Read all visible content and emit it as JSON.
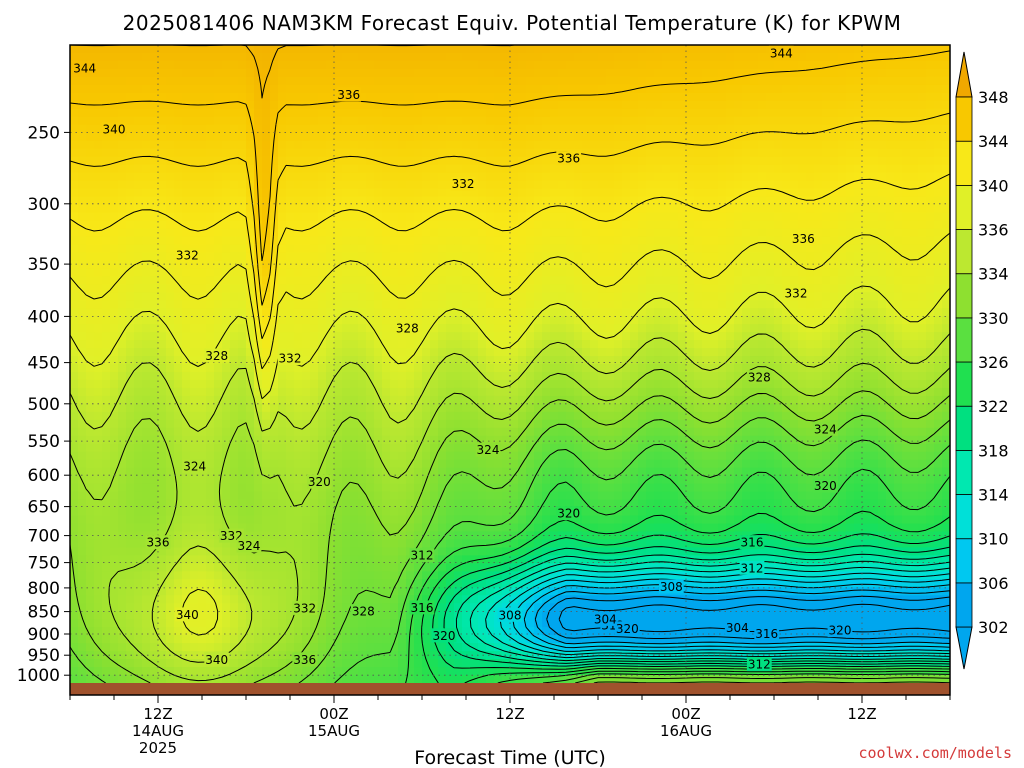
{
  "title": "2025081406 NAM3KM Forecast Equiv. Potential Temperature (K) for KPWM",
  "credit": "coolwx.com/models",
  "chart_data": {
    "type": "heatmap",
    "title": "2025081406 NAM3KM Forecast Equiv. Potential Temperature (K) for KPWM",
    "xlabel": "Forecast Time (UTC)",
    "ylabel": "",
    "y_scale": "log",
    "y_axis_inverted": true,
    "ylim": [
      1020,
      200
    ],
    "y_ticks": [
      250,
      300,
      350,
      400,
      450,
      500,
      550,
      600,
      650,
      700,
      750,
      800,
      850,
      900,
      950,
      1000
    ],
    "x_hours": [
      0,
      60
    ],
    "x_ticks": [
      {
        "hour": 6,
        "lines": [
          "12Z",
          "14AUG",
          "2025"
        ]
      },
      {
        "hour": 18,
        "lines": [
          "00Z",
          "15AUG"
        ]
      },
      {
        "hour": 30,
        "lines": [
          "12Z"
        ]
      },
      {
        "hour": 42,
        "lines": [
          "00Z",
          "16AUG"
        ]
      },
      {
        "hour": 54,
        "lines": [
          "12Z"
        ]
      }
    ],
    "grid": true,
    "colorbar": {
      "levels": [
        302,
        306,
        310,
        314,
        318,
        322,
        326,
        330,
        334,
        336,
        340,
        344,
        348
      ],
      "colors": [
        "#00a6ee",
        "#00c8f0",
        "#00e0d8",
        "#00e8b0",
        "#00e080",
        "#20e050",
        "#5ae040",
        "#8ee030",
        "#bce830",
        "#e0f028",
        "#f8e818",
        "#f8c800",
        "#f0a800"
      ],
      "extend": "both"
    },
    "contour_interval": 2,
    "contour_labels": [
      {
        "value": 344,
        "hour": 1.0,
        "p": 212
      },
      {
        "value": 344,
        "hour": 48.5,
        "p": 204
      },
      {
        "value": 340,
        "hour": 3.0,
        "p": 248
      },
      {
        "value": 336,
        "hour": 19.0,
        "p": 227
      },
      {
        "value": 336,
        "hour": 34.0,
        "p": 267
      },
      {
        "value": 336,
        "hour": 50.0,
        "p": 328
      },
      {
        "value": 332,
        "hour": 26.8,
        "p": 285
      },
      {
        "value": 332,
        "hour": 8.0,
        "p": 342
      },
      {
        "value": 332,
        "hour": 49.5,
        "p": 377
      },
      {
        "value": 332,
        "hour": 15.0,
        "p": 445
      },
      {
        "value": 328,
        "hour": 10.0,
        "p": 442
      },
      {
        "value": 328,
        "hour": 23.0,
        "p": 412
      },
      {
        "value": 328,
        "hour": 47.0,
        "p": 467
      },
      {
        "value": 324,
        "hour": 8.5,
        "p": 586
      },
      {
        "value": 324,
        "hour": 28.5,
        "p": 562
      },
      {
        "value": 324,
        "hour": 51.5,
        "p": 533
      },
      {
        "value": 320,
        "hour": 17.0,
        "p": 610
      },
      {
        "value": 320,
        "hour": 34.0,
        "p": 661
      },
      {
        "value": 320,
        "hour": 51.5,
        "p": 616
      },
      {
        "value": 316,
        "hour": 46.5,
        "p": 712
      },
      {
        "value": 316,
        "hour": 24.0,
        "p": 841
      },
      {
        "value": 316,
        "hour": 47.5,
        "p": 899
      },
      {
        "value": 312,
        "hour": 24.0,
        "p": 736
      },
      {
        "value": 312,
        "hour": 46.5,
        "p": 760
      },
      {
        "value": 312,
        "hour": 37.0,
        "p": 880
      },
      {
        "value": 312,
        "hour": 47.0,
        "p": 972
      },
      {
        "value": 308,
        "hour": 41.0,
        "p": 797
      },
      {
        "value": 308,
        "hour": 30.0,
        "p": 857
      },
      {
        "value": 304,
        "hour": 36.5,
        "p": 866
      },
      {
        "value": 304,
        "hour": 45.5,
        "p": 885
      },
      {
        "value": 320,
        "hour": 38.0,
        "p": 887
      },
      {
        "value": 320,
        "hour": 25.5,
        "p": 903
      },
      {
        "value": 320,
        "hour": 52.5,
        "p": 891
      },
      {
        "value": 336,
        "hour": 6.0,
        "p": 712
      },
      {
        "value": 332,
        "hour": 11.0,
        "p": 700
      },
      {
        "value": 324,
        "hour": 12.2,
        "p": 718
      },
      {
        "value": 340,
        "hour": 8.0,
        "p": 856
      },
      {
        "value": 332,
        "hour": 16.0,
        "p": 842
      },
      {
        "value": 328,
        "hour": 20.0,
        "p": 849
      },
      {
        "value": 340,
        "hour": 10.0,
        "p": 960
      },
      {
        "value": 336,
        "hour": 16.0,
        "p": 960
      }
    ],
    "ground_color": "#a0522d"
  }
}
